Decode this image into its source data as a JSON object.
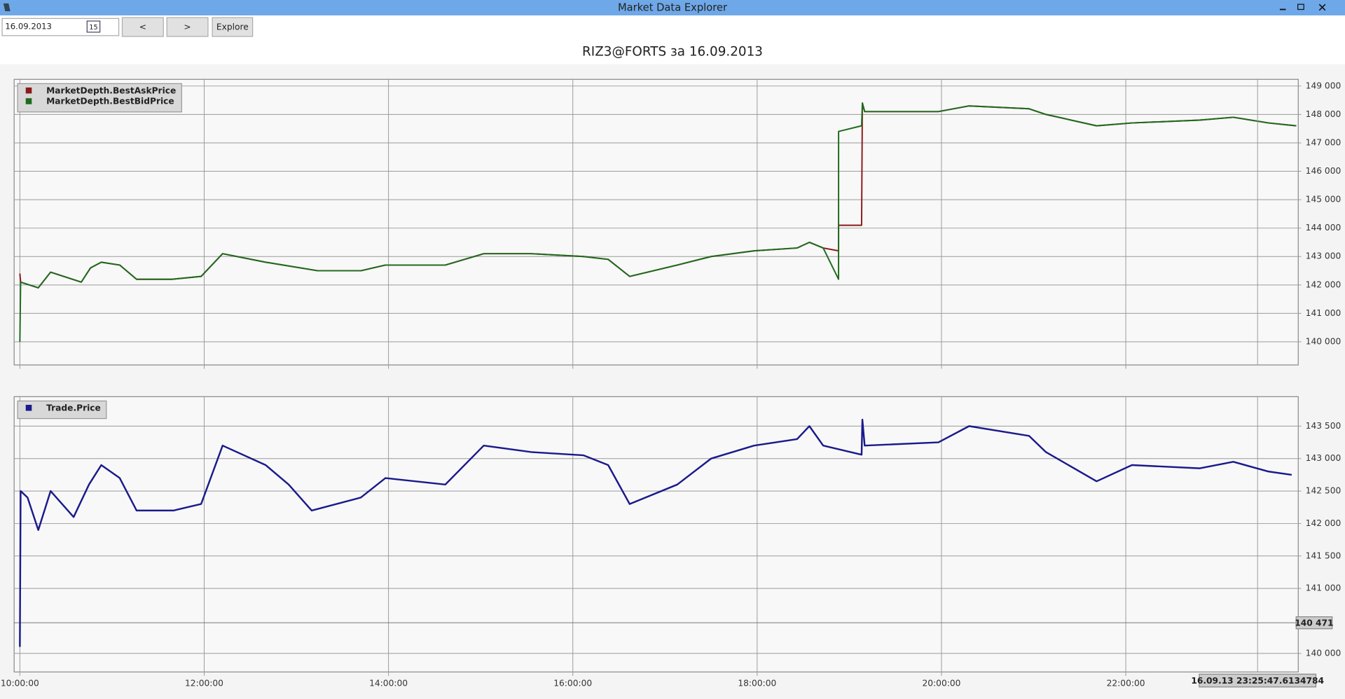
{
  "window": {
    "title": "Market Data Explorer"
  },
  "toolbar": {
    "date": "16.09.2013",
    "calendar_icon": "15",
    "prev_button": "<",
    "next_button": ">",
    "explore_button": "Explore"
  },
  "heading": "RIZ3@FORTS за 16.09.2013",
  "chart_data": [
    {
      "type": "line",
      "legend": "top-left",
      "grid": true,
      "x": [
        "10:00:00",
        "10:00:30",
        "10:12:00",
        "10:20:00",
        "10:40:00",
        "10:46:00",
        "10:53:00",
        "11:05:00",
        "11:16:00",
        "11:39:00",
        "11:58:00",
        "12:12:00",
        "12:40:00",
        "13:14:00",
        "13:42:00",
        "13:58:00",
        "14:37:00",
        "15:02:00",
        "15:33:00",
        "16:07:00",
        "16:23:00",
        "16:37:00",
        "17:08:00",
        "17:30:00",
        "17:58:00",
        "18:26:00",
        "18:34:00",
        "18:43:00",
        "18:53:00",
        "18:53:01",
        "19:08:00",
        "19:08:30",
        "19:10:00",
        "19:58:00",
        "20:18:00",
        "20:57:00",
        "21:08:00",
        "21:41:00",
        "22:04:00",
        "22:48:00",
        "23:10:00",
        "23:33:00",
        "23:51:00"
      ],
      "series": [
        {
          "name": "MarketDepth.BestAskPrice",
          "color": "#8b1a1a",
          "values": [
            142400,
            142100,
            141900,
            142450,
            142100,
            142600,
            142800,
            142700,
            142200,
            142200,
            142300,
            143100,
            142800,
            142500,
            142500,
            142700,
            142700,
            143100,
            143100,
            143000,
            142900,
            142300,
            142700,
            143000,
            143200,
            143300,
            143500,
            143300,
            143200,
            144100,
            144100,
            148400,
            148100,
            148100,
            148300,
            148200,
            148000,
            147600,
            147700,
            147800,
            147900,
            147700,
            147600
          ]
        },
        {
          "name": "MarketDepth.BestBidPrice",
          "color": "#1e6b1e",
          "values": [
            140000,
            142100,
            141900,
            142450,
            142100,
            142600,
            142800,
            142700,
            142200,
            142200,
            142300,
            143100,
            142800,
            142500,
            142500,
            142700,
            142700,
            143100,
            143100,
            143000,
            142900,
            142300,
            142700,
            143000,
            143200,
            143300,
            143500,
            143300,
            142200,
            147400,
            147600,
            148400,
            148100,
            148100,
            148300,
            148200,
            148000,
            147600,
            147700,
            147800,
            147900,
            147700,
            147600
          ]
        }
      ],
      "xlim": [
        "09:56:00",
        "23:52:00"
      ],
      "ylim": [
        139200,
        149250
      ],
      "yticks": [
        {
          "value": 140000,
          "label": "140 000"
        },
        {
          "value": 141000,
          "label": "141 000"
        },
        {
          "value": 142000,
          "label": "142 000"
        },
        {
          "value": 143000,
          "label": "143 000"
        },
        {
          "value": 144000,
          "label": "144 000"
        },
        {
          "value": 145000,
          "label": "145 000"
        },
        {
          "value": 146000,
          "label": "146 000"
        },
        {
          "value": 147000,
          "label": "147 000"
        },
        {
          "value": 148000,
          "label": "148 000"
        },
        {
          "value": 149000,
          "label": "149 000"
        }
      ]
    },
    {
      "type": "line",
      "legend": "top-left",
      "grid": true,
      "x": [
        "10:00:00",
        "10:00:30",
        "10:05:00",
        "10:12:00",
        "10:20:00",
        "10:35:00",
        "10:45:00",
        "10:53:00",
        "11:05:00",
        "11:16:00",
        "11:40:00",
        "11:58:00",
        "12:12:00",
        "12:40:00",
        "12:55:00",
        "13:10:00",
        "13:42:00",
        "13:58:00",
        "14:37:00",
        "15:02:00",
        "15:33:00",
        "16:07:00",
        "16:23:00",
        "16:37:00",
        "17:08:00",
        "17:30:00",
        "17:58:00",
        "18:26:00",
        "18:34:00",
        "18:43:00",
        "19:08:00",
        "19:08:30",
        "19:10:00",
        "19:58:00",
        "20:18:00",
        "20:57:00",
        "21:08:00",
        "21:41:00",
        "22:04:00",
        "22:48:00",
        "23:10:00",
        "23:33:00",
        "23:48:00"
      ],
      "series": [
        {
          "name": "Trade.Price",
          "color": "#1a1a8c",
          "values": [
            140100,
            142500,
            142400,
            141900,
            142500,
            142100,
            142600,
            142900,
            142700,
            142200,
            142200,
            142300,
            143200,
            142900,
            142600,
            142200,
            142400,
            142700,
            142600,
            143200,
            143100,
            143050,
            142900,
            142300,
            142600,
            143000,
            143200,
            143300,
            143500,
            143200,
            143060,
            143600,
            143200,
            143250,
            143500,
            143350,
            143100,
            142650,
            142900,
            142850,
            142950,
            142800,
            142750
          ]
        }
      ],
      "xlim": [
        "09:56:00",
        "23:52:00"
      ],
      "ylim": [
        139720,
        143960
      ],
      "xticks": [
        "10:00:00",
        "12:00:00",
        "14:00:00",
        "16:00:00",
        "18:00:00",
        "20:00:00",
        "22:00:00"
      ],
      "yticks": [
        {
          "value": 140000,
          "label": "140 000"
        },
        {
          "value": 141000,
          "label": "141 000"
        },
        {
          "value": 141500,
          "label": "141 500"
        },
        {
          "value": 142000,
          "label": "142 000"
        },
        {
          "value": 142500,
          "label": "142 500"
        },
        {
          "value": 143000,
          "label": "143 000"
        },
        {
          "value": 143500,
          "label": "143 500"
        }
      ],
      "cursor": {
        "y": {
          "value": 140471,
          "label": "140 471"
        },
        "x_label": "16.09.13 23:25:47.6134784"
      }
    }
  ]
}
